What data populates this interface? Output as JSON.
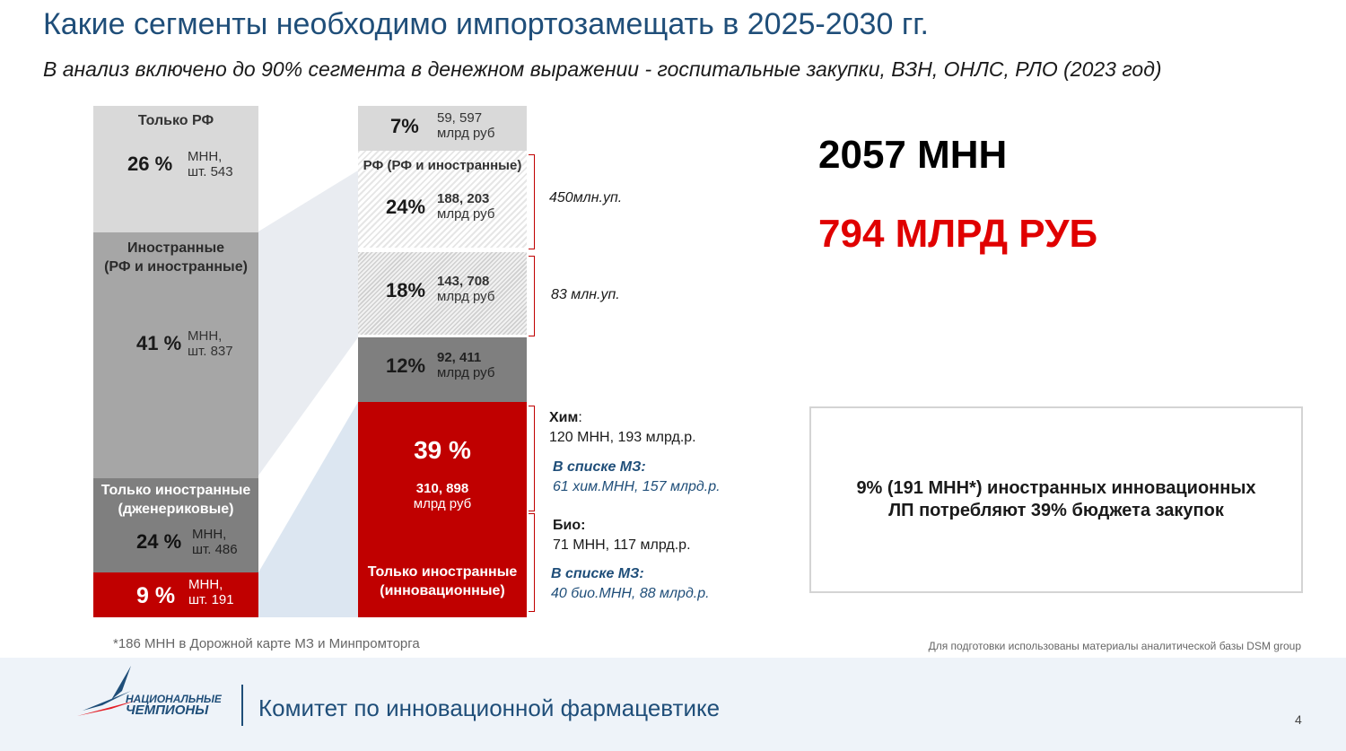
{
  "title": "Какие сегменты необходимо импортозамещать в 2025-2030 гг.",
  "subtitle": "В анализ включено до 90% сегмента в денежном выражении  - госпитальные закупки, ВЗН, ОНЛС, РЛО (2023 год)",
  "left_bar": {
    "seg1": {
      "label": "Только РФ",
      "pct": "26 %",
      "unit1": "МНН,",
      "unit2": "шт. 543"
    },
    "seg2": {
      "label1": "Иностранные",
      "label2": "(РФ и иностранные)",
      "pct": "41 %",
      "unit1": "МНН,",
      "unit2": "шт. 837"
    },
    "seg3": {
      "label1": "Только иностранные",
      "label2": "(дженериковые)",
      "pct": "24 %",
      "unit1": "МНН,",
      "unit2": "шт. 486"
    },
    "seg4": {
      "pct": "9 %",
      "unit1": "МНН,",
      "unit2": "шт. 191"
    }
  },
  "right_bar": {
    "seg1": {
      "pct": "7%",
      "value": "59, 597",
      "unit": "млрд руб"
    },
    "seg2_label": "РФ (РФ и иностранные)",
    "seg2": {
      "pct": "24%",
      "value": "188, 203",
      "unit": "млрд руб"
    },
    "seg3": {
      "pct": "18%",
      "value": "143, 708",
      "unit": "млрд руб"
    },
    "seg4": {
      "pct": "12%",
      "value": "92, 411",
      "unit": "млрд руб"
    },
    "seg5": {
      "pct": "39 %",
      "value": "310, 898",
      "unit": "млрд руб",
      "label1": "Только иностранные",
      "label2": "(инновационные)"
    }
  },
  "annotations": {
    "a1": "450млн.уп.",
    "a2": "83 млн.уп.",
    "chem_title": "Хим",
    "chem_colon": ":",
    "chem_value": "120 МНН, 193 млрд.р.",
    "chem_list_title": "В списке МЗ:",
    "chem_list_value": "61 хим.МНН, 157 млрд.р.",
    "bio_title": "Био:",
    "bio_value": "71 МНН, 117 млрд.р.",
    "bio_list_title": "В списке МЗ:",
    "bio_list_value": "40 био.МНН, 88 млрд.р."
  },
  "totals": {
    "mnn": "2057 МНН",
    "rub": "794 МЛРД РУБ"
  },
  "callout": "9% (191 МНН*) иностранных инновационных ЛП потребляют 39% бюджета закупок",
  "footnote": "*186 МНН в Дорожной карте МЗ и Минпромторга",
  "source": "Для подготовки использованы материалы аналитической базы DSM group",
  "footer": {
    "logo_line1": "НАЦИОНАЛЬНЫЕ",
    "logo_line2": "ЧЕМПИОНЫ",
    "committee": "Комитет по инновационной фармацевтике",
    "page": "4"
  },
  "colors": {
    "title_blue": "#1f4e79",
    "red": "#c00000",
    "light_gray": "#d9d9d9",
    "mid_gray": "#a6a6a6",
    "dark_gray": "#7f7f7f"
  }
}
